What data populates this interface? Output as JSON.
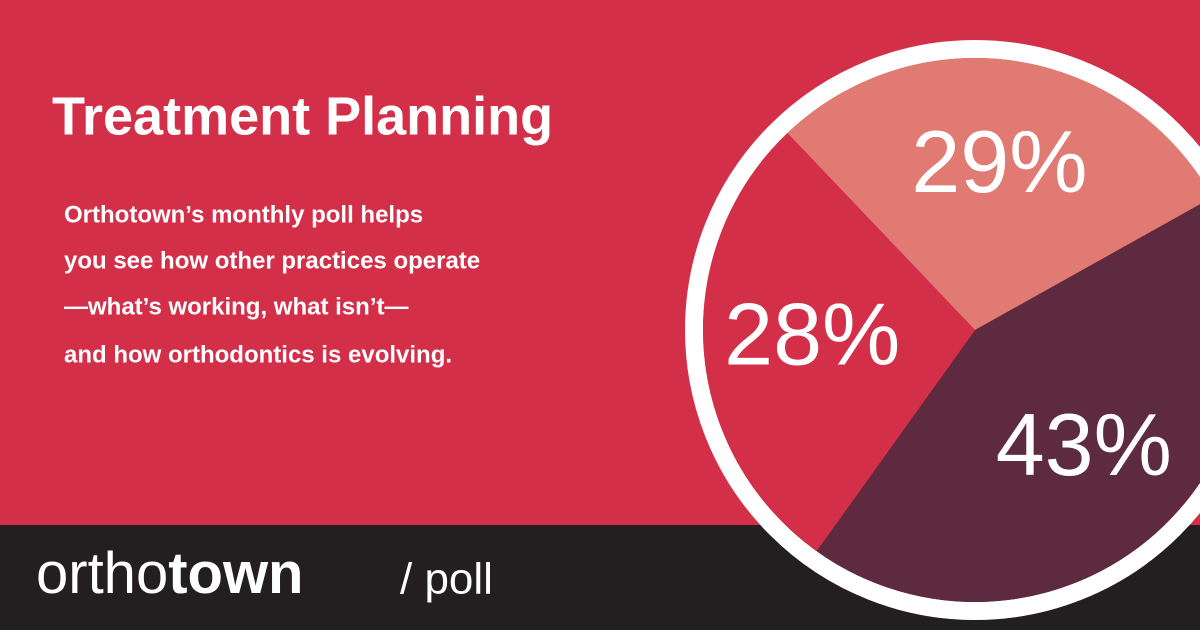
{
  "chart_data": {
    "type": "pie",
    "title": "Treatment Planning",
    "subtitle_lines": [
      "Orthotown’s monthly poll helps",
      "you see how other practices operate",
      "—what’s working, what isn’t—",
      "and how orthodontics is evolving."
    ],
    "values": [
      29,
      43,
      28
    ],
    "value_labels": [
      "29%",
      "43%",
      "28%"
    ],
    "colors": [
      "#e07a72",
      "#5e2a3f",
      "#d42f49"
    ]
  },
  "footer": {
    "brand_light": "ortho",
    "brand_bold": "town",
    "section": "/ poll"
  }
}
